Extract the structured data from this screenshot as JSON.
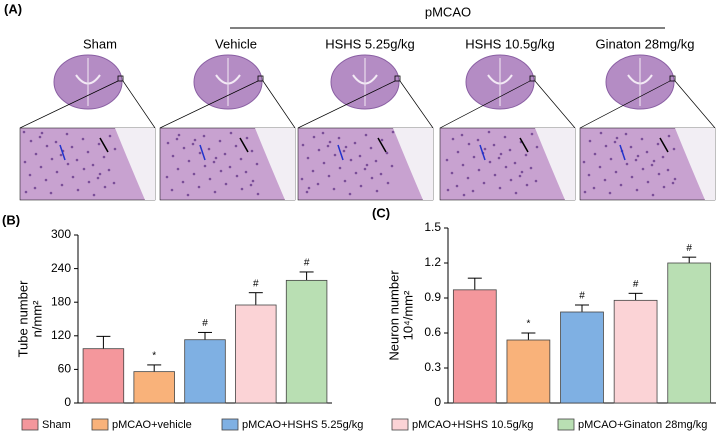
{
  "panel_a": {
    "panel_label": "(A)",
    "group_header": "pMCAO",
    "groups": [
      "Sham",
      "Vehicle",
      "HSHS  5.25g/kg",
      "HSHS  10.5g/kg",
      "Ginaton  28mg/kg"
    ]
  },
  "chart_data": [
    {
      "type": "bar",
      "panel_label": "(B)",
      "y_label": "Tube number",
      "y_unit": "n/mm²",
      "categories": [
        "Sham",
        "pMCAO+vehicle",
        "pMCAO+HSHS 5.25g/kg",
        "pMCAO+HSHS 10.5g/kg",
        "pMCAO+Ginaton 28mg/kg"
      ],
      "colors": [
        "#f4979c",
        "#f9b27a",
        "#7fb0e3",
        "#fbd3d6",
        "#b9dfb3"
      ],
      "values": [
        97,
        56,
        113,
        175,
        219
      ],
      "errors": [
        22,
        12,
        13,
        22,
        15
      ],
      "marks": [
        null,
        "*",
        "#",
        "#",
        "#"
      ],
      "ylim": [
        0,
        300
      ],
      "yticks": [
        0,
        60,
        120,
        180,
        240,
        300
      ]
    },
    {
      "type": "bar",
      "panel_label": "(C)",
      "y_label": "Neuron number",
      "y_unit": "10⁴/mm²",
      "values": [
        0.97,
        0.54,
        0.78,
        0.88,
        1.2
      ],
      "errors": [
        0.1,
        0.06,
        0.06,
        0.06,
        0.05
      ],
      "marks": [
        null,
        "*",
        "#",
        "#",
        "#"
      ],
      "ylim": [
        0,
        1.5
      ],
      "yticks": [
        0,
        0.3,
        0.6,
        0.9,
        1.2,
        1.5
      ]
    }
  ]
}
